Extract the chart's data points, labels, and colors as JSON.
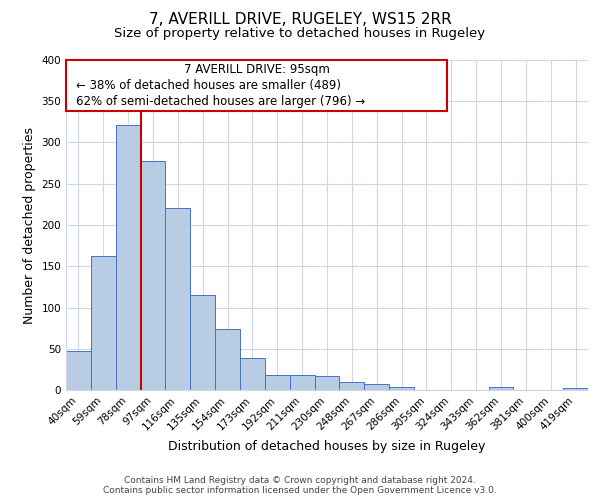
{
  "title": "7, AVERILL DRIVE, RUGELEY, WS15 2RR",
  "subtitle": "Size of property relative to detached houses in Rugeley",
  "xlabel": "Distribution of detached houses by size in Rugeley",
  "ylabel": "Number of detached properties",
  "categories": [
    "40sqm",
    "59sqm",
    "78sqm",
    "97sqm",
    "116sqm",
    "135sqm",
    "154sqm",
    "173sqm",
    "192sqm",
    "211sqm",
    "230sqm",
    "248sqm",
    "267sqm",
    "286sqm",
    "305sqm",
    "324sqm",
    "343sqm",
    "362sqm",
    "381sqm",
    "400sqm",
    "419sqm"
  ],
  "values": [
    47,
    162,
    321,
    278,
    221,
    115,
    74,
    39,
    18,
    18,
    17,
    10,
    7,
    4,
    0,
    0,
    0,
    4,
    0,
    0,
    2
  ],
  "bar_color": "#b8cce4",
  "bar_edge_color": "#4472c4",
  "vline_x_index": 3,
  "vline_color": "#cc0000",
  "ylim": [
    0,
    400
  ],
  "yticks": [
    0,
    50,
    100,
    150,
    200,
    250,
    300,
    350,
    400
  ],
  "annotation_title": "7 AVERILL DRIVE: 95sqm",
  "annotation_line1": "← 38% of detached houses are smaller (489)",
  "annotation_line2": "62% of semi-detached houses are larger (796) →",
  "annotation_box_edge": "#cc0000",
  "footer1": "Contains HM Land Registry data © Crown copyright and database right 2024.",
  "footer2": "Contains public sector information licensed under the Open Government Licence v3.0.",
  "title_fontsize": 11,
  "subtitle_fontsize": 9.5,
  "xlabel_fontsize": 9,
  "ylabel_fontsize": 9,
  "tick_fontsize": 7.5,
  "annotation_fontsize": 8.5,
  "footer_fontsize": 6.5,
  "grid_color": "#d0d8e8",
  "background_color": "#ffffff"
}
